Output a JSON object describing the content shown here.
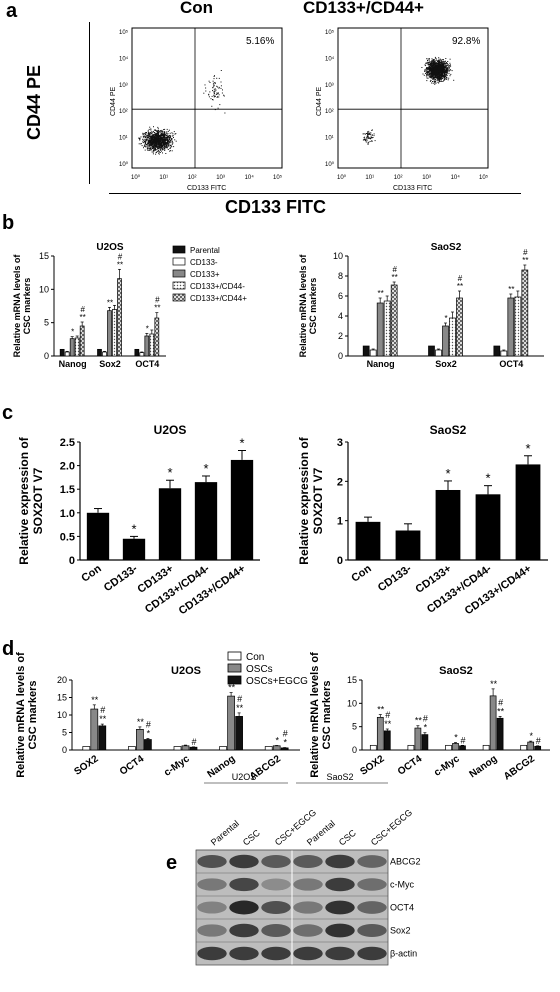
{
  "panels": {
    "a": {
      "letter": "a",
      "left_title": "Con",
      "right_title": "CD133+/CD44+",
      "big_ylabel": "CD44 PE",
      "big_xlabel": "CD133 FITC",
      "small_ylabel": "CD44 PE",
      "small_xlabel": "CD133 FITC",
      "left_pct": "5.16%",
      "right_pct": "92.8%",
      "ticks": [
        "10⁰",
        "10¹",
        "10²",
        "10³",
        "10⁴",
        "10⁵"
      ]
    },
    "b": {
      "letter": "b"
    },
    "c": {
      "letter": "c"
    },
    "d": {
      "letter": "d"
    },
    "e": {
      "letter": "e",
      "groups": [
        "U2OS",
        "SaoS2"
      ],
      "lanes": [
        "Parental",
        "CSC",
        "CSC+EGCG",
        "Parental",
        "CSC",
        "CSC+EGCG"
      ],
      "bands": [
        "ABCG2",
        "c-Myc",
        "OCT4",
        "Sox2",
        "β-actin"
      ],
      "band_intensity": [
        [
          0.75,
          0.85,
          0.7,
          0.7,
          0.85,
          0.65
        ],
        [
          0.55,
          0.8,
          0.45,
          0.55,
          0.85,
          0.6
        ],
        [
          0.5,
          0.95,
          0.75,
          0.55,
          0.9,
          0.65
        ],
        [
          0.55,
          0.85,
          0.7,
          0.6,
          0.9,
          0.7
        ],
        [
          0.85,
          0.85,
          0.85,
          0.85,
          0.85,
          0.85
        ]
      ]
    }
  },
  "chart_data": [
    {
      "id": "b-u2os",
      "type": "bar",
      "title": "U2OS",
      "ylabel": "Relative mRNA levels  of CSC markers",
      "ylim": [
        0,
        15
      ],
      "yticks": [
        "0",
        "5",
        "10",
        "15"
      ],
      "categories": [
        "Nanog",
        "Sox2",
        "OCT4"
      ],
      "series": [
        {
          "name": "Parental",
          "color": "#111111",
          "values": [
            1.0,
            1.0,
            1.0
          ],
          "err": [
            0,
            0,
            0
          ],
          "ann": [
            "",
            "",
            ""
          ]
        },
        {
          "name": "CD133-",
          "color": "#ffffff",
          "values": [
            0.6,
            0.6,
            0.5
          ],
          "err": [
            0.1,
            0.1,
            0.1
          ],
          "ann": [
            "",
            "",
            ""
          ]
        },
        {
          "name": "CD133+",
          "color": "#888888",
          "values": [
            2.6,
            6.8,
            3.0
          ],
          "err": [
            0.3,
            0.5,
            0.4
          ],
          "ann": [
            "*",
            "**",
            "*"
          ]
        },
        {
          "name": "CD133+/CD44-",
          "color": "#cccccc",
          "values": [
            2.7,
            7.0,
            3.3
          ],
          "err": [
            0.3,
            0.6,
            0.6
          ],
          "ann": [
            "",
            "",
            ""
          ]
        },
        {
          "name": "CD133+/CD44+",
          "color": "#aaaaaa",
          "values": [
            4.5,
            11.6,
            5.7
          ],
          "err": [
            0.6,
            1.4,
            0.8
          ],
          "ann": [
            "#\n**",
            "#\n**",
            "#\n**"
          ]
        }
      ]
    },
    {
      "id": "b-saos2",
      "type": "bar",
      "title": "SaoS2",
      "ylabel": "Relative mRNA levels of CSC markers",
      "ylim": [
        0,
        10
      ],
      "yticks": [
        "0",
        "2",
        "4",
        "6",
        "8",
        "10"
      ],
      "categories": [
        "Nanog",
        "Sox2",
        "OCT4"
      ],
      "series": [
        {
          "name": "Parental",
          "color": "#111111",
          "values": [
            1.0,
            1.0,
            1.0
          ],
          "err": [
            0,
            0,
            0
          ],
          "ann": [
            "",
            "",
            ""
          ]
        },
        {
          "name": "CD133-",
          "color": "#ffffff",
          "values": [
            0.6,
            0.6,
            0.5
          ],
          "err": [
            0.1,
            0.1,
            0.1
          ],
          "ann": [
            "",
            "",
            ""
          ]
        },
        {
          "name": "CD133+",
          "color": "#888888",
          "values": [
            5.3,
            3.0,
            5.8
          ],
          "err": [
            0.5,
            0.3,
            0.4
          ],
          "ann": [
            "**",
            "*",
            "**"
          ]
        },
        {
          "name": "CD133+/CD44-",
          "color": "#cccccc",
          "values": [
            5.5,
            3.8,
            5.9
          ],
          "err": [
            0.5,
            0.6,
            0.6
          ],
          "ann": [
            "",
            "",
            ""
          ]
        },
        {
          "name": "CD133+/CD44+",
          "color": "#aaaaaa",
          "values": [
            7.1,
            5.8,
            8.6
          ],
          "err": [
            0.3,
            0.7,
            0.5
          ],
          "ann": [
            "#\n**",
            "#\n**",
            "#\n**"
          ]
        }
      ]
    },
    {
      "id": "c-u2os",
      "type": "bar",
      "title": "U2OS",
      "ylabel": "Relative expression of SOX2OT V7",
      "ylim": [
        0,
        2.5
      ],
      "yticks": [
        "0",
        "0.5",
        "1.0",
        "1.5",
        "2.0",
        "2.5"
      ],
      "categories": [
        "Con",
        "CD133-",
        "CD133+",
        "CD133+/CD44-",
        "CD133+/CD44+"
      ],
      "values": [
        1.0,
        0.45,
        1.52,
        1.65,
        2.12
      ],
      "err": [
        0.09,
        0.05,
        0.17,
        0.13,
        0.2
      ],
      "ann": [
        "",
        "*",
        "*",
        "*",
        "*"
      ]
    },
    {
      "id": "c-saos2",
      "type": "bar",
      "title": "SaoS2",
      "ylabel": "Relative expression of SOX2OT V7",
      "ylim": [
        0,
        3
      ],
      "yticks": [
        "0",
        "1",
        "2",
        "3"
      ],
      "categories": [
        "Con",
        "CD133-",
        "CD133+",
        "CD133+/CD44-",
        "CD133+/CD44+"
      ],
      "values": [
        0.97,
        0.75,
        1.78,
        1.67,
        2.43
      ],
      "err": [
        0.12,
        0.17,
        0.23,
        0.22,
        0.22
      ],
      "ann": [
        "",
        "",
        "*",
        "*",
        "*"
      ]
    },
    {
      "id": "d-u2os",
      "type": "bar",
      "title": "U2OS",
      "ylabel": "Relative mRNA levels of CSC markers",
      "ylim": [
        0,
        20
      ],
      "yticks": [
        "0",
        "5",
        "10",
        "15",
        "20"
      ],
      "categories": [
        "SOX2",
        "OCT4",
        "c-Myc",
        "Nanog",
        "ABCG2"
      ],
      "series": [
        {
          "name": "Con",
          "color": "#ffffff",
          "values": [
            1.0,
            1.0,
            1.0,
            1.0,
            1.0
          ],
          "err": [
            0,
            0,
            0,
            0,
            0
          ],
          "ann": [
            "",
            "",
            "",
            "",
            ""
          ]
        },
        {
          "name": "OSCs",
          "color": "#888888",
          "values": [
            11.7,
            5.9,
            1.2,
            15.4,
            1.2
          ],
          "err": [
            1.2,
            0.7,
            0.2,
            1.0,
            0.1
          ],
          "ann": [
            "**",
            "**",
            "",
            "**",
            "*"
          ]
        },
        {
          "name": "OSCs+EGCG",
          "color": "#111111",
          "values": [
            6.9,
            3.0,
            0.8,
            9.6,
            0.6
          ],
          "err": [
            0.5,
            0.3,
            0.1,
            1.0,
            0.1
          ],
          "ann": [
            "#\n**",
            "#\n*",
            "#",
            "#\n**",
            "#\n*"
          ]
        }
      ]
    },
    {
      "id": "d-saos2",
      "type": "bar",
      "title": "SaoS2",
      "ylabel": "Relative mRNA levels of CSC markers",
      "ylim": [
        0,
        15
      ],
      "yticks": [
        "0",
        "5",
        "10",
        "15"
      ],
      "categories": [
        "SOX2",
        "OCT4",
        "c-Myc",
        "Nanog",
        "ABCG2"
      ],
      "series": [
        {
          "name": "Con",
          "color": "#ffffff",
          "values": [
            1.0,
            1.0,
            1.0,
            1.0,
            1.0
          ],
          "err": [
            0,
            0,
            0,
            0,
            0
          ],
          "ann": [
            "",
            "",
            "",
            "",
            ""
          ]
        },
        {
          "name": "OSCs",
          "color": "#888888",
          "values": [
            7.0,
            4.7,
            1.4,
            11.6,
            1.7
          ],
          "err": [
            0.6,
            0.5,
            0.2,
            1.5,
            0.2
          ],
          "ann": [
            "**",
            "**",
            "*",
            "**",
            "*"
          ]
        },
        {
          "name": "OSCs+EGCG",
          "color": "#111111",
          "values": [
            4.1,
            3.3,
            0.9,
            6.8,
            0.8
          ],
          "err": [
            0.4,
            0.4,
            0.1,
            0.4,
            0.1
          ],
          "ann": [
            "#\n**",
            "#\n*",
            "#",
            "#\n**",
            "#"
          ]
        }
      ]
    }
  ]
}
